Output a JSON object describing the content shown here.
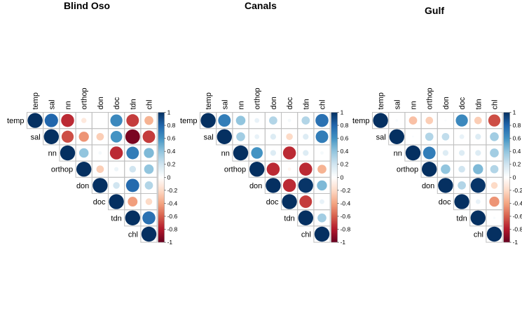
{
  "chart_data": [
    {
      "type": "heatmap",
      "title": "Blind Oso",
      "variables": [
        "temp",
        "sal",
        "nn",
        "orthop",
        "don",
        "doc",
        "tdn",
        "chl"
      ],
      "matrix": [
        [
          1,
          0.8,
          -0.75,
          -0.12,
          0,
          0.65,
          -0.7,
          -0.35
        ],
        [
          null,
          1,
          -0.65,
          -0.45,
          -0.25,
          0.6,
          -0.95,
          -0.7
        ],
        [
          null,
          null,
          1,
          0.4,
          0.05,
          -0.75,
          0.7,
          0.45
        ],
        [
          null,
          null,
          null,
          1,
          -0.25,
          0.08,
          0.2,
          0.4
        ],
        [
          null,
          null,
          null,
          null,
          1,
          0.2,
          0.78,
          0.3
        ],
        [
          null,
          null,
          null,
          null,
          null,
          1,
          -0.42,
          -0.2
        ],
        [
          null,
          null,
          null,
          null,
          null,
          null,
          1,
          0.75
        ],
        [
          null,
          null,
          null,
          null,
          null,
          null,
          null,
          1
        ]
      ]
    },
    {
      "type": "heatmap",
      "title": "Canals",
      "variables": [
        "temp",
        "sal",
        "nn",
        "orthop",
        "don",
        "doc",
        "tdn",
        "chl"
      ],
      "matrix": [
        [
          1,
          0.7,
          0.4,
          0.1,
          0.3,
          0.05,
          0.3,
          0.75
        ],
        [
          null,
          1,
          0.35,
          0.1,
          0.15,
          -0.2,
          0.15,
          0.7
        ],
        [
          null,
          null,
          1,
          0.6,
          0.15,
          -0.75,
          0.15,
          0.05
        ],
        [
          null,
          null,
          null,
          1,
          -0.75,
          -0.05,
          -0.75,
          -0.35
        ],
        [
          null,
          null,
          null,
          null,
          1,
          -0.75,
          0.98,
          0.45
        ],
        [
          null,
          null,
          null,
          null,
          null,
          1,
          -0.7,
          0.1
        ],
        [
          null,
          null,
          null,
          null,
          null,
          null,
          1,
          0.35
        ],
        [
          null,
          null,
          null,
          null,
          null,
          null,
          null,
          1
        ]
      ]
    },
    {
      "type": "heatmap",
      "title": "Gulf",
      "variables": [
        "temp",
        "sal",
        "nn",
        "orthop",
        "don",
        "doc",
        "tdn",
        "chl"
      ],
      "matrix": [
        [
          1,
          0.03,
          -0.3,
          -0.25,
          0.02,
          0.65,
          -0.25,
          -0.65
        ],
        [
          null,
          1,
          0.02,
          0.3,
          0.25,
          0.1,
          0.15,
          0.35
        ],
        [
          null,
          null,
          1,
          0.7,
          0.15,
          0.15,
          0.15,
          0.35
        ],
        [
          null,
          null,
          null,
          1,
          0.4,
          0.2,
          0.45,
          0.3
        ],
        [
          null,
          null,
          null,
          null,
          1,
          0.3,
          0.98,
          -0.2
        ],
        [
          null,
          null,
          null,
          null,
          null,
          1,
          0.1,
          -0.45
        ],
        [
          null,
          null,
          null,
          null,
          null,
          null,
          1,
          0.03
        ],
        [
          null,
          null,
          null,
          null,
          null,
          null,
          null,
          1
        ]
      ]
    }
  ],
  "colorbar": {
    "ticks": [
      "1",
      "0.8",
      "0.6",
      "0.4",
      "0.2",
      "0",
      "-0.2",
      "-0.4",
      "-0.6",
      "-0.8",
      "-1"
    ],
    "range": [
      -1,
      1
    ],
    "colors": [
      "#67001F",
      "#B2182B",
      "#D6604D",
      "#F4A582",
      "#FDDBC7",
      "#FFFFFF",
      "#D1E5F0",
      "#92C5DE",
      "#4393C3",
      "#2166AC",
      "#053061"
    ]
  }
}
